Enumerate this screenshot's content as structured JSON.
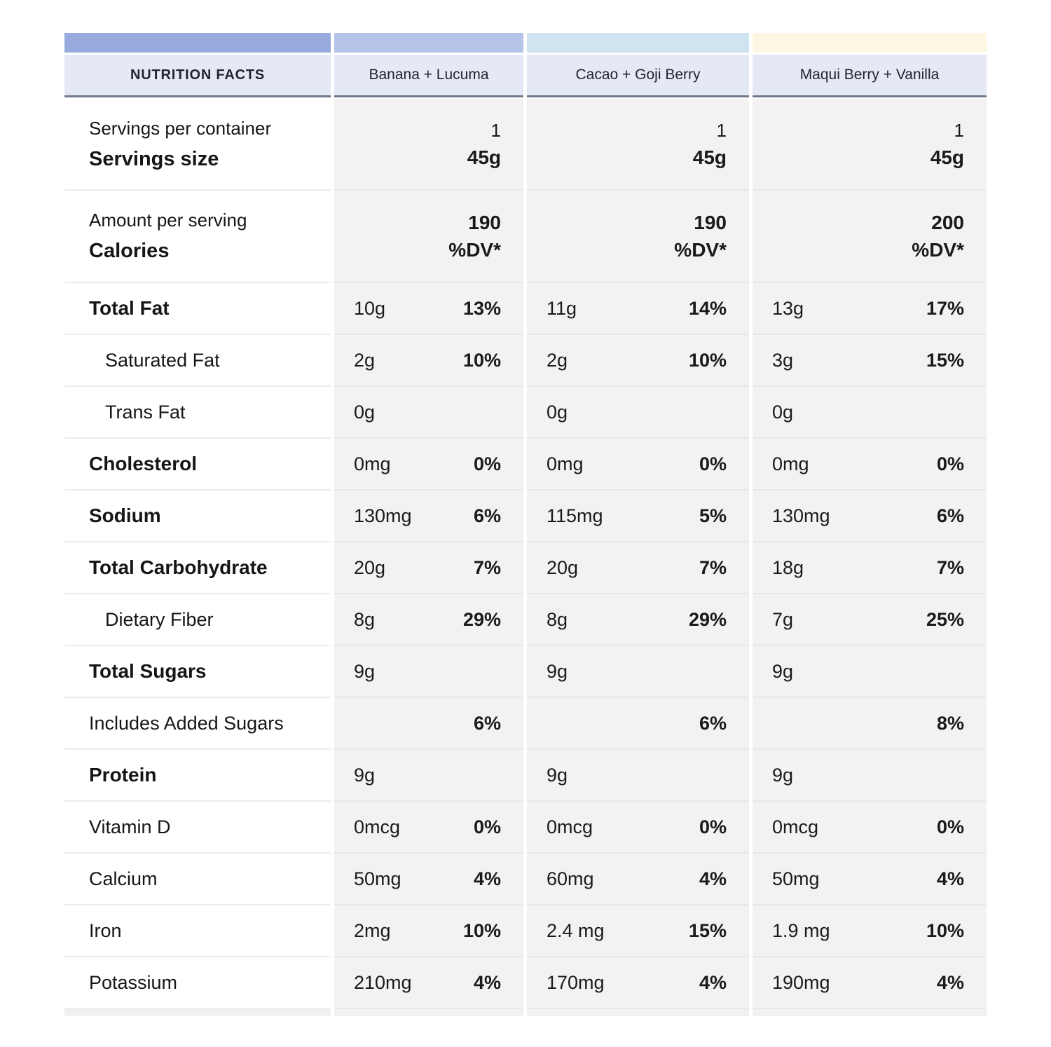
{
  "colors": {
    "bar_nutrition_facts": "#97aade",
    "bar_banana_lucuma": "#b6c4e9",
    "bar_cacao_goji": "#cfe3f1",
    "bar_maqui_vanilla": "#fdf6e3",
    "header_background": "#e4e9f5",
    "header_underline": "#707a88",
    "value_column_background": "#f2f2f2",
    "label_column_background": "#ffffff",
    "text": "#1a1a1a"
  },
  "chart_data": {
    "type": "table",
    "title": "NUTRITION FACTS",
    "columns": [
      "Banana + Lucuma",
      "Cacao + Goji Berry",
      "Maqui Berry + Vanilla"
    ],
    "rows": [
      {
        "label": "Servings per container",
        "label2": "Servings size",
        "style": "double",
        "cells": [
          {
            "line1": "1",
            "line2": "45g"
          },
          {
            "line1": "1",
            "line2": "45g"
          },
          {
            "line1": "1",
            "line2": "45g"
          }
        ]
      },
      {
        "label": "Amount per serving",
        "label2": "Calories",
        "style": "double_bold",
        "cells": [
          {
            "line1": "190",
            "line2": "%DV*"
          },
          {
            "line1": "190",
            "line2": "%DV*"
          },
          {
            "line1": "200",
            "line2": "%DV*"
          }
        ]
      },
      {
        "label": "Total Fat",
        "style": "bold",
        "cells": [
          {
            "amount": "10g",
            "dv": "13%"
          },
          {
            "amount": "11g",
            "dv": "14%"
          },
          {
            "amount": "13g",
            "dv": "17%"
          }
        ]
      },
      {
        "label": "Saturated Fat",
        "style": "indent",
        "cells": [
          {
            "amount": "2g",
            "dv": "10%"
          },
          {
            "amount": "2g",
            "dv": "10%"
          },
          {
            "amount": "3g",
            "dv": "15%"
          }
        ]
      },
      {
        "label": "Trans Fat",
        "style": "indent",
        "cells": [
          {
            "amount": "0g"
          },
          {
            "amount": "0g"
          },
          {
            "amount": "0g"
          }
        ]
      },
      {
        "label": "Cholesterol",
        "style": "bold",
        "cells": [
          {
            "amount": "0mg",
            "dv": "0%"
          },
          {
            "amount": "0mg",
            "dv": "0%"
          },
          {
            "amount": "0mg",
            "dv": "0%"
          }
        ]
      },
      {
        "label": "Sodium",
        "style": "bold",
        "cells": [
          {
            "amount": "130mg",
            "dv": "6%"
          },
          {
            "amount": "115mg",
            "dv": "5%"
          },
          {
            "amount": "130mg",
            "dv": "6%"
          }
        ]
      },
      {
        "label": "Total Carbohydrate",
        "style": "bold",
        "cells": [
          {
            "amount": "20g",
            "dv": "7%"
          },
          {
            "amount": "20g",
            "dv": "7%"
          },
          {
            "amount": "18g",
            "dv": "7%"
          }
        ]
      },
      {
        "label": "Dietary Fiber",
        "style": "indent",
        "cells": [
          {
            "amount": "8g",
            "dv": "29%"
          },
          {
            "amount": "8g",
            "dv": "29%"
          },
          {
            "amount": "7g",
            "dv": "25%"
          }
        ]
      },
      {
        "label": "Total Sugars",
        "style": "bold",
        "cells": [
          {
            "amount": "9g"
          },
          {
            "amount": "9g"
          },
          {
            "amount": "9g"
          }
        ]
      },
      {
        "label": "Includes Added Sugars",
        "style": "plain",
        "cells": [
          {
            "dv": "6%"
          },
          {
            "dv": "6%"
          },
          {
            "dv": "8%"
          }
        ]
      },
      {
        "label": "Protein",
        "style": "bold",
        "cells": [
          {
            "amount": "9g"
          },
          {
            "amount": "9g"
          },
          {
            "amount": "9g"
          }
        ]
      },
      {
        "label": "Vitamin D",
        "style": "plain",
        "cells": [
          {
            "amount": "0mcg",
            "dv": "0%"
          },
          {
            "amount": "0mcg",
            "dv": "0%"
          },
          {
            "amount": "0mcg",
            "dv": "0%"
          }
        ]
      },
      {
        "label": "Calcium",
        "style": "plain",
        "cells": [
          {
            "amount": "50mg",
            "dv": "4%"
          },
          {
            "amount": "60mg",
            "dv": "4%"
          },
          {
            "amount": "50mg",
            "dv": "4%"
          }
        ]
      },
      {
        "label": "Iron",
        "style": "plain",
        "cells": [
          {
            "amount": "2mg",
            "dv": "10%"
          },
          {
            "amount": "2.4 mg",
            "dv": "15%"
          },
          {
            "amount": "1.9 mg",
            "dv": "10%"
          }
        ]
      },
      {
        "label": "Potassium",
        "style": "plain",
        "cells": [
          {
            "amount": "210mg",
            "dv": "4%"
          },
          {
            "amount": "170mg",
            "dv": "4%"
          },
          {
            "amount": "190mg",
            "dv": "4%"
          }
        ]
      }
    ]
  }
}
